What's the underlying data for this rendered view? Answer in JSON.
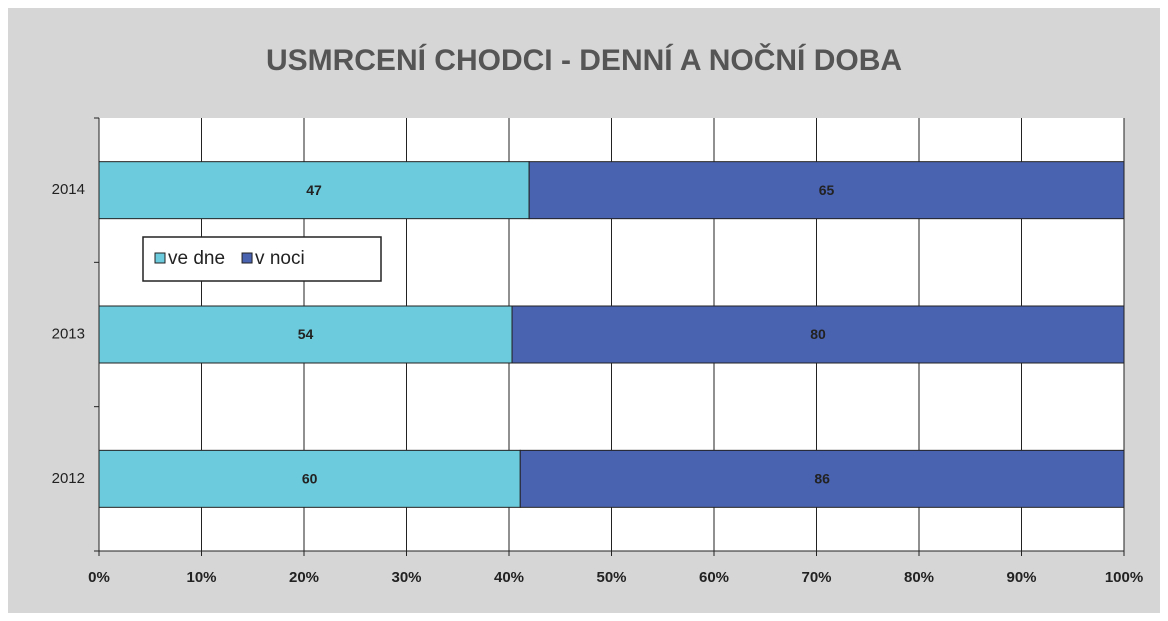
{
  "chart_data": {
    "type": "bar",
    "orientation": "horizontal",
    "stacking": "percent",
    "title": "USMRCENÍ CHODCI - DENNÍ A NOČNÍ DOBA",
    "categories": [
      "2012",
      "2013",
      "2014"
    ],
    "series": [
      {
        "name": "ve dne",
        "color": "#6ccbdc",
        "values": [
          60,
          54,
          47
        ]
      },
      {
        "name": "v noci",
        "color": "#4a63b0",
        "values": [
          86,
          80,
          65
        ]
      }
    ],
    "xlim": [
      0,
      100
    ],
    "xticks": [
      {
        "value": 0,
        "label": "0%"
      },
      {
        "value": 10,
        "label": "10%"
      },
      {
        "value": 20,
        "label": "20%"
      },
      {
        "value": 30,
        "label": "30%"
      },
      {
        "value": 40,
        "label": "40%"
      },
      {
        "value": 50,
        "label": "50%"
      },
      {
        "value": 60,
        "label": "60%"
      },
      {
        "value": 70,
        "label": "70%"
      },
      {
        "value": 80,
        "label": "80%"
      },
      {
        "value": 90,
        "label": "90%"
      },
      {
        "value": 100,
        "label": "100%"
      }
    ],
    "grid": true,
    "legend": "upper left"
  }
}
